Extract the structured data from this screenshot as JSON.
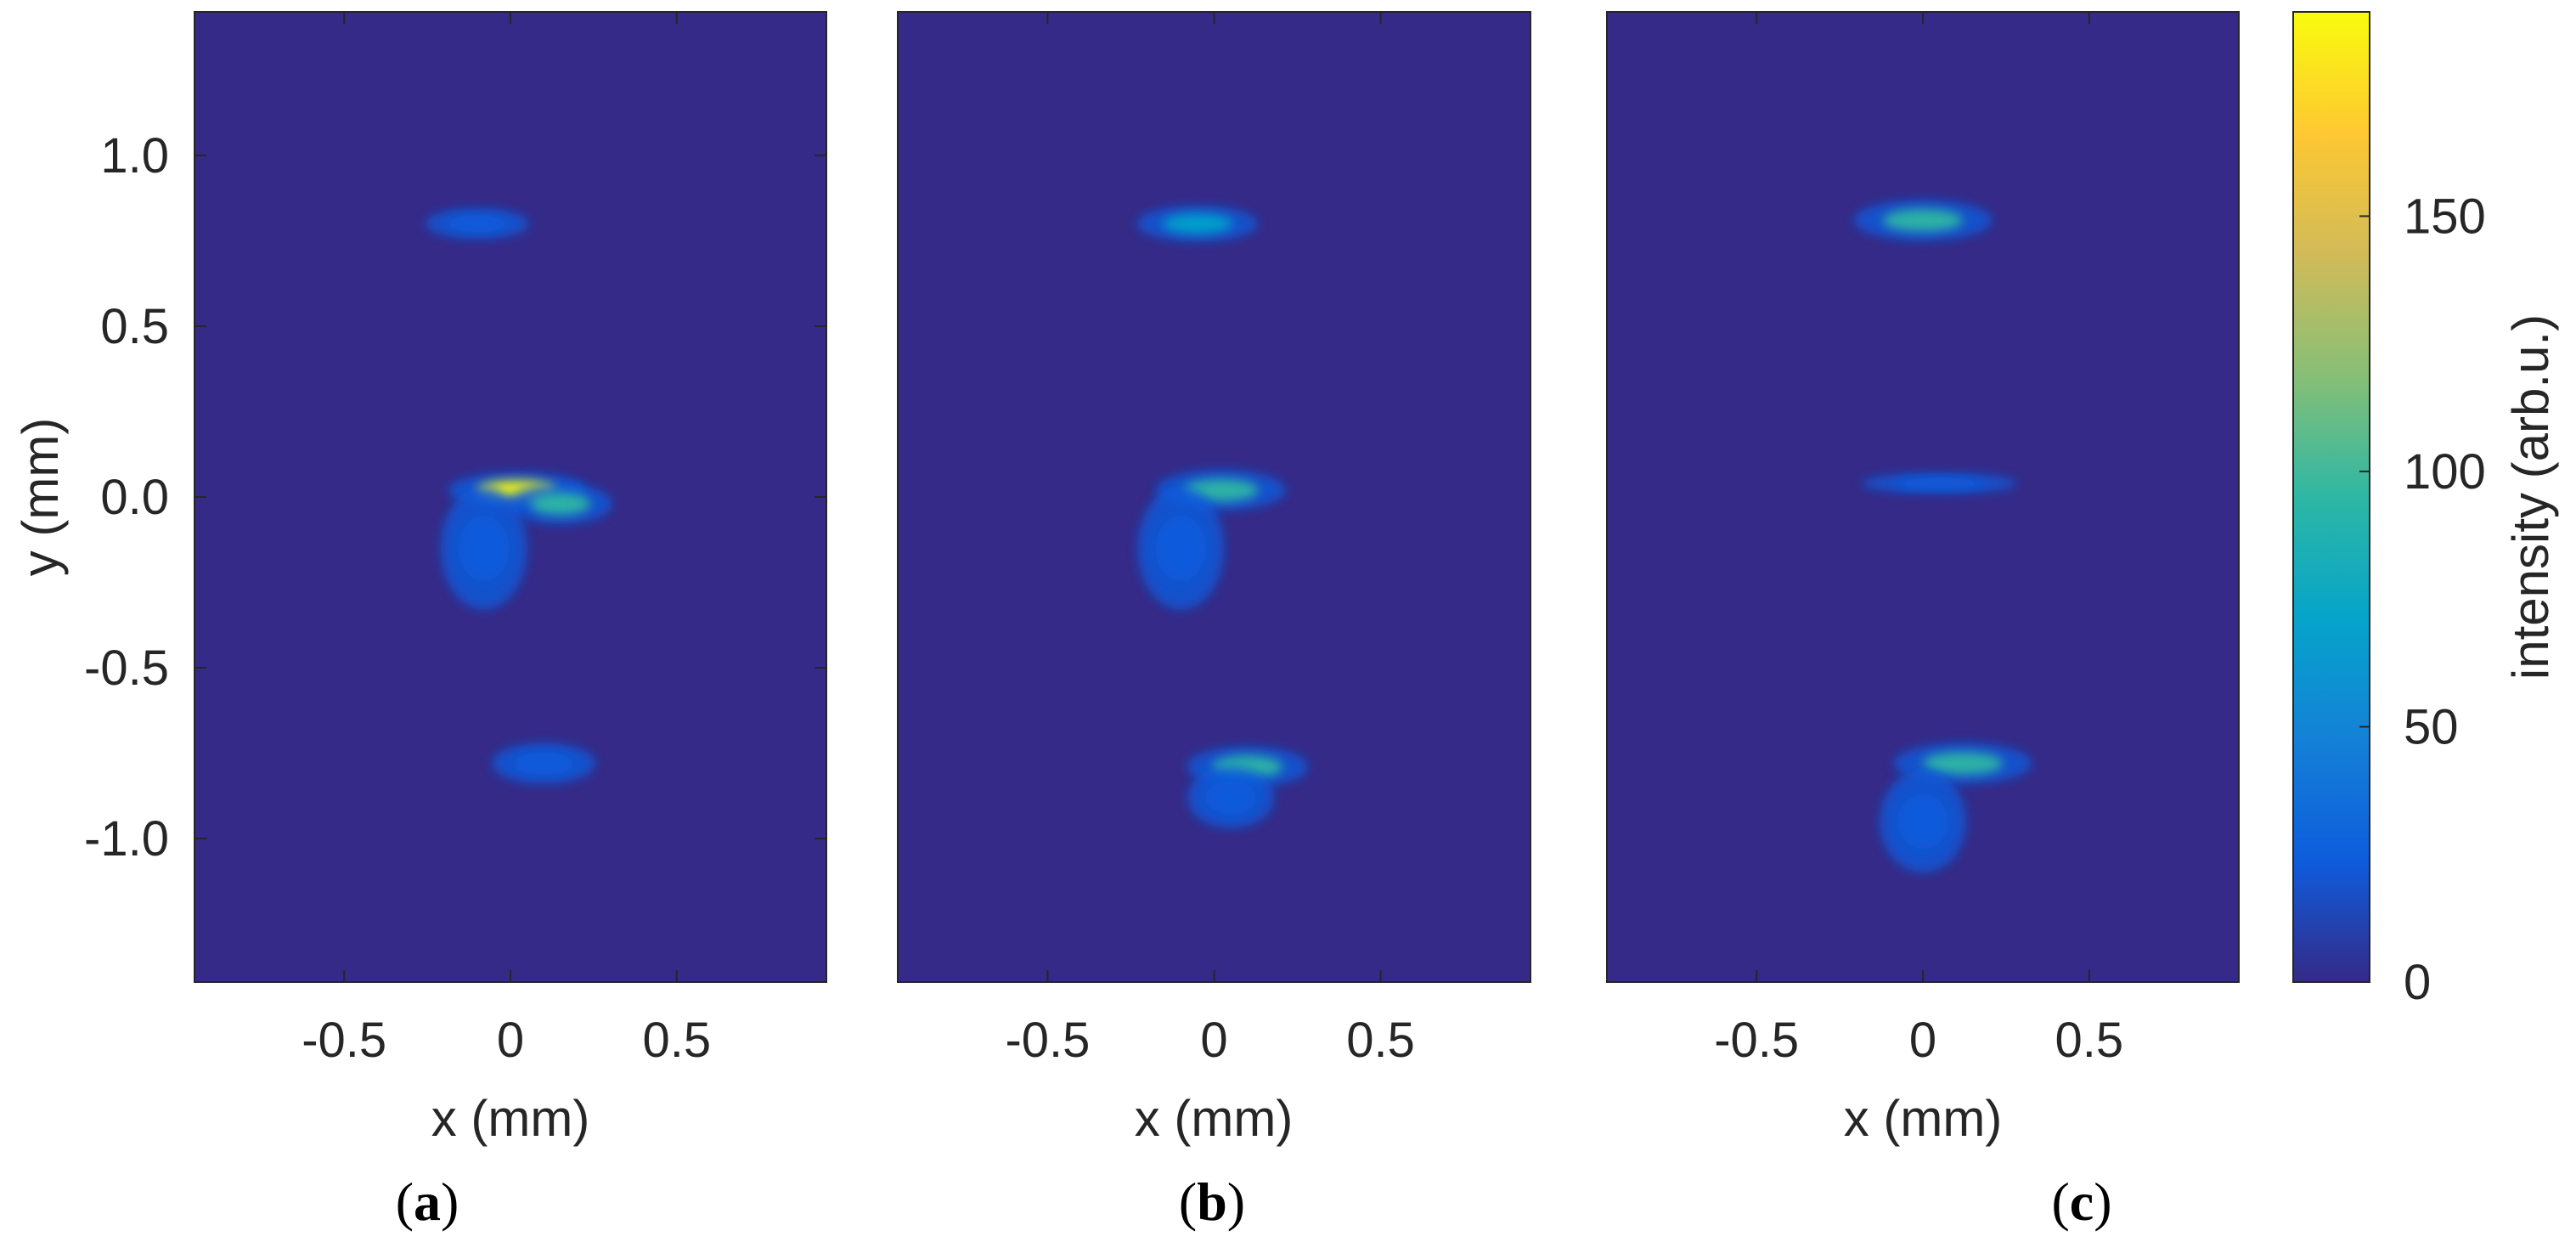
{
  "chart_data": {
    "colorbar": {
      "label": "intensity (arb.u.)",
      "ticks": [
        0,
        50,
        100,
        150
      ],
      "range": [
        0,
        190
      ],
      "colormap": "parula",
      "colormap_stops": [
        "#352a87",
        "#0f5cdd",
        "#1481d6",
        "#06a4ca",
        "#2eb7a4",
        "#87bf77",
        "#d1bb59",
        "#fec832",
        "#f9fb0e"
      ]
    },
    "panels": [
      {
        "label": "a",
        "type": "heatmap",
        "xlabel": "x (mm)",
        "ylabel": "y (mm)",
        "xlim": [
          -0.95,
          0.95
        ],
        "ylim": [
          -1.42,
          1.42
        ],
        "xticks": [
          "-0.5",
          "0",
          "0.5"
        ],
        "yticks": [
          "-1.0",
          "-0.5",
          "0.0",
          "0.5",
          "1.0"
        ],
        "background": 0,
        "spots": [
          {
            "x": 0.02,
            "y": 0.02,
            "peak": 190,
            "sigma_x": 0.16,
            "sigma_y": 0.035,
            "color_index": 8
          },
          {
            "x": 0.15,
            "y": -0.02,
            "peak": 70,
            "sigma_x": 0.12,
            "sigma_y": 0.04,
            "color_index": 4
          },
          {
            "x": -0.08,
            "y": -0.15,
            "peak": 14,
            "sigma_x": 0.1,
            "sigma_y": 0.12,
            "color_index": 1
          },
          {
            "x": -0.1,
            "y": 0.8,
            "peak": 6,
            "sigma_x": 0.12,
            "sigma_y": 0.03,
            "color_index": 1
          },
          {
            "x": 0.1,
            "y": -0.78,
            "peak": 8,
            "sigma_x": 0.12,
            "sigma_y": 0.04,
            "color_index": 1
          }
        ]
      },
      {
        "label": "b",
        "type": "heatmap",
        "xlabel": "x (mm)",
        "ylabel": "",
        "xlim": [
          -0.95,
          0.95
        ],
        "ylim": [
          -1.42,
          1.42
        ],
        "xticks": [
          "-0.5",
          "0",
          "0.5"
        ],
        "yticks": [],
        "background": 0,
        "spots": [
          {
            "x": -0.05,
            "y": 0.8,
            "peak": 55,
            "sigma_x": 0.14,
            "sigma_y": 0.035,
            "color_index": 3
          },
          {
            "x": 0.02,
            "y": 0.02,
            "peak": 95,
            "sigma_x": 0.15,
            "sigma_y": 0.04,
            "color_index": 4
          },
          {
            "x": -0.1,
            "y": -0.15,
            "peak": 14,
            "sigma_x": 0.1,
            "sigma_y": 0.12,
            "color_index": 1
          },
          {
            "x": 0.1,
            "y": -0.79,
            "peak": 85,
            "sigma_x": 0.14,
            "sigma_y": 0.04,
            "color_index": 4
          },
          {
            "x": 0.05,
            "y": -0.88,
            "peak": 12,
            "sigma_x": 0.1,
            "sigma_y": 0.06,
            "color_index": 1
          }
        ]
      },
      {
        "label": "c",
        "type": "heatmap",
        "xlabel": "x (mm)",
        "ylabel": "",
        "xlim": [
          -0.95,
          0.95
        ],
        "ylim": [
          -1.42,
          1.42
        ],
        "xticks": [
          "-0.5",
          "0",
          "0.5"
        ],
        "yticks": [],
        "background": 0,
        "spots": [
          {
            "x": 0.0,
            "y": 0.81,
            "peak": 110,
            "sigma_x": 0.16,
            "sigma_y": 0.04,
            "color_index": 4
          },
          {
            "x": 0.05,
            "y": 0.04,
            "peak": 6,
            "sigma_x": 0.18,
            "sigma_y": 0.02,
            "color_index": 1
          },
          {
            "x": 0.12,
            "y": -0.78,
            "peak": 105,
            "sigma_x": 0.16,
            "sigma_y": 0.04,
            "color_index": 4
          },
          {
            "x": 0.0,
            "y": -0.95,
            "peak": 14,
            "sigma_x": 0.1,
            "sigma_y": 0.1,
            "color_index": 1
          }
        ]
      }
    ]
  }
}
